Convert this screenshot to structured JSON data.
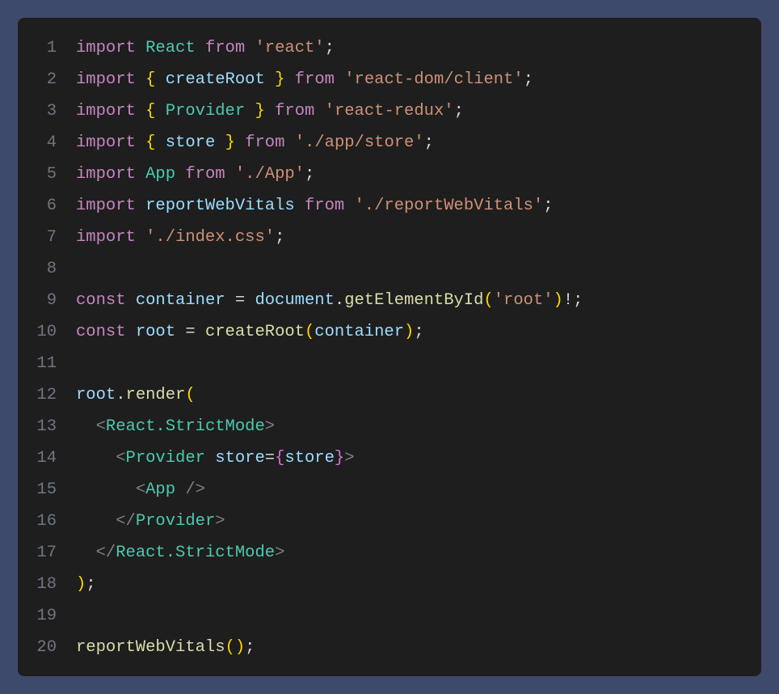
{
  "editor": {
    "background": "#1e1e1e",
    "page_background": "#3d4a6b",
    "border_radius": 8,
    "font_family": "Consolas, Monaco, Courier New, monospace",
    "font_size": 20.5,
    "line_height": 39,
    "gutter_color": "#6e7681",
    "default_text_color": "#d4d4d4",
    "token_colors": {
      "keyword": "#c586c0",
      "identifier": "#9cdcfe",
      "type": "#4ec9b0",
      "string": "#ce9178",
      "punctuation": "#d4d4d4",
      "brace_l1": "#ffd700",
      "brace_l2": "#da70d6",
      "function": "#dcdcaa",
      "object": "#9cdcfe",
      "tag_bracket": "#808080",
      "tag_name": "#4ec9b0",
      "attribute": "#9cdcfe"
    },
    "lines": [
      {
        "n": "1",
        "tokens": [
          [
            "keyword",
            "import"
          ],
          [
            "punc",
            " "
          ],
          [
            "type",
            "React"
          ],
          [
            "punc",
            " "
          ],
          [
            "keyword",
            "from"
          ],
          [
            "punc",
            " "
          ],
          [
            "string",
            "'react'"
          ],
          [
            "punc",
            ";"
          ]
        ]
      },
      {
        "n": "2",
        "tokens": [
          [
            "keyword",
            "import"
          ],
          [
            "punc",
            " "
          ],
          [
            "brace",
            "{"
          ],
          [
            "punc",
            " "
          ],
          [
            "ident",
            "createRoot"
          ],
          [
            "punc",
            " "
          ],
          [
            "brace",
            "}"
          ],
          [
            "punc",
            " "
          ],
          [
            "keyword",
            "from"
          ],
          [
            "punc",
            " "
          ],
          [
            "string",
            "'react-dom/client'"
          ],
          [
            "punc",
            ";"
          ]
        ]
      },
      {
        "n": "3",
        "tokens": [
          [
            "keyword",
            "import"
          ],
          [
            "punc",
            " "
          ],
          [
            "brace",
            "{"
          ],
          [
            "punc",
            " "
          ],
          [
            "type",
            "Provider"
          ],
          [
            "punc",
            " "
          ],
          [
            "brace",
            "}"
          ],
          [
            "punc",
            " "
          ],
          [
            "keyword",
            "from"
          ],
          [
            "punc",
            " "
          ],
          [
            "string",
            "'react-redux'"
          ],
          [
            "punc",
            ";"
          ]
        ]
      },
      {
        "n": "4",
        "tokens": [
          [
            "keyword",
            "import"
          ],
          [
            "punc",
            " "
          ],
          [
            "brace",
            "{"
          ],
          [
            "punc",
            " "
          ],
          [
            "ident",
            "store"
          ],
          [
            "punc",
            " "
          ],
          [
            "brace",
            "}"
          ],
          [
            "punc",
            " "
          ],
          [
            "keyword",
            "from"
          ],
          [
            "punc",
            " "
          ],
          [
            "string",
            "'./app/store'"
          ],
          [
            "punc",
            ";"
          ]
        ]
      },
      {
        "n": "5",
        "tokens": [
          [
            "keyword",
            "import"
          ],
          [
            "punc",
            " "
          ],
          [
            "type",
            "App"
          ],
          [
            "punc",
            " "
          ],
          [
            "keyword",
            "from"
          ],
          [
            "punc",
            " "
          ],
          [
            "string",
            "'./App'"
          ],
          [
            "punc",
            ";"
          ]
        ]
      },
      {
        "n": "6",
        "tokens": [
          [
            "keyword",
            "import"
          ],
          [
            "punc",
            " "
          ],
          [
            "ident",
            "reportWebVitals"
          ],
          [
            "punc",
            " "
          ],
          [
            "keyword",
            "from"
          ],
          [
            "punc",
            " "
          ],
          [
            "string",
            "'./reportWebVitals'"
          ],
          [
            "punc",
            ";"
          ]
        ]
      },
      {
        "n": "7",
        "tokens": [
          [
            "keyword",
            "import"
          ],
          [
            "punc",
            " "
          ],
          [
            "string",
            "'./index.css'"
          ],
          [
            "punc",
            ";"
          ]
        ]
      },
      {
        "n": "8",
        "tokens": []
      },
      {
        "n": "9",
        "tokens": [
          [
            "keyword",
            "const"
          ],
          [
            "punc",
            " "
          ],
          [
            "ident",
            "container"
          ],
          [
            "punc",
            " = "
          ],
          [
            "obj",
            "document"
          ],
          [
            "punc",
            "."
          ],
          [
            "func",
            "getElementById"
          ],
          [
            "brace",
            "("
          ],
          [
            "string",
            "'root'"
          ],
          [
            "brace",
            ")"
          ],
          [
            "punc",
            "!;"
          ]
        ]
      },
      {
        "n": "10",
        "tokens": [
          [
            "keyword",
            "const"
          ],
          [
            "punc",
            " "
          ],
          [
            "ident",
            "root"
          ],
          [
            "punc",
            " = "
          ],
          [
            "func",
            "createRoot"
          ],
          [
            "brace",
            "("
          ],
          [
            "ident",
            "container"
          ],
          [
            "brace",
            ")"
          ],
          [
            "punc",
            ";"
          ]
        ]
      },
      {
        "n": "11",
        "tokens": []
      },
      {
        "n": "12",
        "tokens": [
          [
            "obj",
            "root"
          ],
          [
            "punc",
            "."
          ],
          [
            "func",
            "render"
          ],
          [
            "brace",
            "("
          ]
        ]
      },
      {
        "n": "13",
        "tokens": [
          [
            "punc",
            "  "
          ],
          [
            "tag-br",
            "<"
          ],
          [
            "tag",
            "React.StrictMode"
          ],
          [
            "tag-br",
            ">"
          ]
        ]
      },
      {
        "n": "14",
        "tokens": [
          [
            "punc",
            "    "
          ],
          [
            "tag-br",
            "<"
          ],
          [
            "tag",
            "Provider"
          ],
          [
            "punc",
            " "
          ],
          [
            "attr",
            "store"
          ],
          [
            "punc",
            "="
          ],
          [
            "brace2",
            "{"
          ],
          [
            "ident",
            "store"
          ],
          [
            "brace2",
            "}"
          ],
          [
            "tag-br",
            ">"
          ]
        ]
      },
      {
        "n": "15",
        "tokens": [
          [
            "punc",
            "      "
          ],
          [
            "tag-br",
            "<"
          ],
          [
            "tag",
            "App"
          ],
          [
            "punc",
            " "
          ],
          [
            "tag-br",
            "/>"
          ]
        ]
      },
      {
        "n": "16",
        "tokens": [
          [
            "punc",
            "    "
          ],
          [
            "tag-br",
            "</"
          ],
          [
            "tag",
            "Provider"
          ],
          [
            "tag-br",
            ">"
          ]
        ]
      },
      {
        "n": "17",
        "tokens": [
          [
            "punc",
            "  "
          ],
          [
            "tag-br",
            "</"
          ],
          [
            "tag",
            "React.StrictMode"
          ],
          [
            "tag-br",
            ">"
          ]
        ]
      },
      {
        "n": "18",
        "tokens": [
          [
            "brace",
            ")"
          ],
          [
            "punc",
            ";"
          ]
        ]
      },
      {
        "n": "19",
        "tokens": []
      },
      {
        "n": "20",
        "tokens": [
          [
            "func",
            "reportWebVitals"
          ],
          [
            "brace",
            "("
          ],
          [
            "brace",
            ")"
          ],
          [
            "punc",
            ";"
          ]
        ]
      }
    ]
  }
}
